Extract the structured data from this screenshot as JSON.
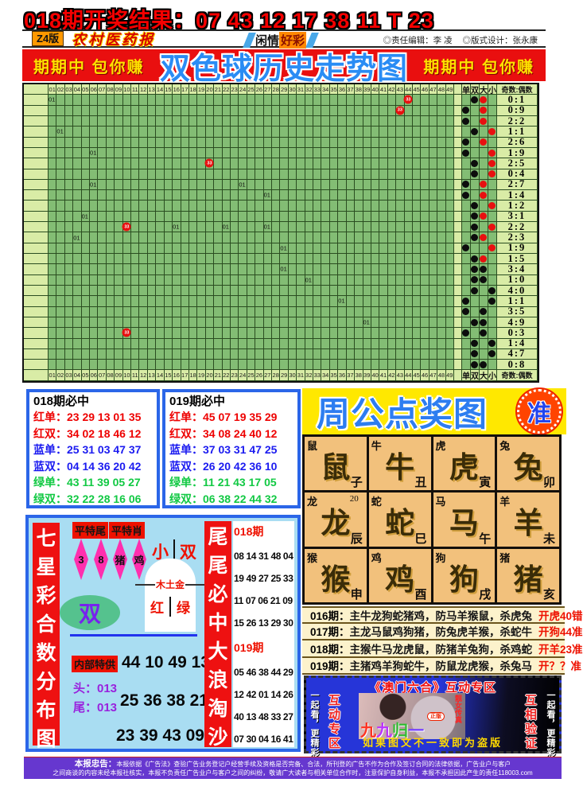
{
  "page": {
    "result_title": "018期开奖结果：07 43 12 17 38 11 T 23"
  },
  "masthead": {
    "edition": "Z4版",
    "paper_name": "农村医药报",
    "column_left": "闲情",
    "column_right": "好彩",
    "editor": "◎责任编辑：李 凌",
    "designer": "◎版式设计：张永康"
  },
  "banner": {
    "slogan_left": "期期中 包你赚",
    "title": "双色球历史走势图",
    "slogan_right": "期期中 包你赚"
  },
  "trend_chart": {
    "type": "table",
    "title": "双色球历史走势图",
    "column_headers": [
      "01",
      "02",
      "03",
      "04",
      "05",
      "06",
      "07",
      "08",
      "09",
      "10",
      "11",
      "12",
      "13",
      "14",
      "15",
      "16",
      "17",
      "18",
      "19",
      "20",
      "21",
      "22",
      "23",
      "24",
      "25",
      "26",
      "27",
      "28",
      "29",
      "30",
      "31",
      "32",
      "33",
      "34",
      "35",
      "36",
      "37",
      "38",
      "39",
      "40",
      "41",
      "42",
      "43",
      "44",
      "45",
      "46",
      "47",
      "48",
      "49"
    ],
    "right_headers": [
      "单",
      "双",
      "大",
      "小"
    ],
    "ratio_header": "奇数:偶数",
    "rows": [
      {
        "parity": "双",
        "size": "大",
        "size_color": "red",
        "ratio": "0:1",
        "marks": [
          {
            "col": 1,
            "label": "01",
            "dot": false
          },
          {
            "col": 44,
            "label": "33",
            "dot": true
          }
        ]
      },
      {
        "parity": "单",
        "size": "大",
        "size_color": "red",
        "ratio": "0:9",
        "marks": [
          {
            "col": 43,
            "label": "33",
            "dot": true
          }
        ]
      },
      {
        "parity": "单",
        "size": "大",
        "size_color": "red",
        "ratio": "2:2",
        "marks": []
      },
      {
        "parity": "双",
        "size": "小",
        "size_color": "red",
        "ratio": "1:1",
        "marks": [
          {
            "col": 2,
            "label": "01",
            "dot": false
          }
        ]
      },
      {
        "parity": "单",
        "size": "大",
        "size_color": "red",
        "ratio": "2:6",
        "marks": []
      },
      {
        "parity": "单",
        "size": "小",
        "size_color": "red",
        "ratio": "1:9",
        "marks": [
          {
            "col": 6,
            "label": "01",
            "dot": false
          }
        ]
      },
      {
        "parity": "双",
        "size": "小",
        "size_color": "red",
        "ratio": "2:5",
        "marks": [
          {
            "col": 20,
            "label": "33",
            "dot": true
          }
        ]
      },
      {
        "parity": "双",
        "size": "小",
        "size_color": "red",
        "ratio": "0:4",
        "marks": []
      },
      {
        "parity": "单",
        "size": "大",
        "size_color": "red",
        "ratio": "2:7",
        "marks": [
          {
            "col": 6,
            "label": "01",
            "dot": false
          },
          {
            "col": 24,
            "label": "01",
            "dot": false
          }
        ]
      },
      {
        "parity": "单",
        "size": "大",
        "size_color": "red",
        "ratio": "1:4",
        "marks": [
          {
            "col": 27,
            "label": "01",
            "dot": false
          }
        ]
      },
      {
        "parity": "双",
        "size": "小",
        "size_color": "red",
        "ratio": "1:2",
        "marks": []
      },
      {
        "parity": "双",
        "size": "大",
        "size_color": "red",
        "ratio": "3:1",
        "marks": [
          {
            "col": 5,
            "label": "01",
            "dot": false
          }
        ]
      },
      {
        "parity": "双",
        "size": "小",
        "size_color": "red",
        "ratio": "2:2",
        "marks": [
          {
            "col": 10,
            "label": "33",
            "dot": true
          },
          {
            "col": 16,
            "label": "01",
            "dot": false
          },
          {
            "col": 22,
            "label": "01",
            "dot": false
          },
          {
            "col": 27,
            "label": "01",
            "dot": false
          }
        ]
      },
      {
        "parity": "双",
        "size": "大",
        "size_color": "red",
        "ratio": "2:3",
        "marks": [
          {
            "col": 4,
            "label": "01",
            "dot": false
          }
        ]
      },
      {
        "parity": "单",
        "size": "小",
        "size_color": "red",
        "ratio": "1:9",
        "marks": [
          {
            "col": 29,
            "label": "01",
            "dot": false
          }
        ]
      },
      {
        "parity": "双",
        "size": "大",
        "size_color": "red",
        "ratio": "1:5",
        "marks": []
      },
      {
        "parity": "双",
        "size": "大",
        "size_color": "black",
        "ratio": "3:4",
        "marks": [
          {
            "col": 29,
            "label": "01",
            "dot": false
          }
        ]
      },
      {
        "parity": "双",
        "size": "大",
        "size_color": "black",
        "ratio": "1:0",
        "marks": [
          {
            "col": 32,
            "label": "01",
            "dot": false
          }
        ]
      },
      {
        "parity": "双",
        "size": "小",
        "size_color": "black",
        "ratio": "4:0",
        "marks": []
      },
      {
        "parity": "单",
        "size": "小",
        "size_color": "black",
        "ratio": "1:1",
        "marks": [
          {
            "col": 36,
            "label": "01",
            "dot": false
          }
        ]
      },
      {
        "parity": "单",
        "size": "大",
        "size_color": "black",
        "ratio": "3:5",
        "marks": []
      },
      {
        "parity": "双",
        "size": "大",
        "size_color": "black",
        "ratio": "4:9",
        "marks": [
          {
            "col": 39,
            "label": "01",
            "dot": false
          }
        ]
      },
      {
        "parity": "单",
        "size": "大",
        "size_color": "black",
        "ratio": "0:3",
        "marks": [
          {
            "col": 10,
            "label": "33",
            "dot": true
          }
        ]
      },
      {
        "parity": "双",
        "size": "小",
        "size_color": "black",
        "ratio": "1:4",
        "marks": []
      },
      {
        "parity": "双",
        "size": "小",
        "size_color": "black",
        "ratio": "4:7",
        "marks": []
      },
      {
        "parity": "双",
        "size": "大",
        "size_color": "black",
        "ratio": "0:8",
        "marks": []
      }
    ]
  },
  "picks": [
    {
      "title": "018期必中",
      "rows": [
        {
          "label": "红单：",
          "numbers": "23 29 13 01 35",
          "color": "red"
        },
        {
          "label": "红双：",
          "numbers": "34 02 18 46 12",
          "color": "red"
        },
        {
          "label": "蓝单：",
          "numbers": "25 31 03 47 37",
          "color": "blue"
        },
        {
          "label": "蓝双：",
          "numbers": "04 14 36 20 42",
          "color": "blue"
        },
        {
          "label": "绿单：",
          "numbers": "43 11 39 05 27",
          "color": "green"
        },
        {
          "label": "绿双：",
          "numbers": "32 22 28 16 06",
          "color": "green"
        }
      ]
    },
    {
      "title": "019期必中",
      "rows": [
        {
          "label": "红单：",
          "numbers": "45 07 19 35 29",
          "color": "red"
        },
        {
          "label": "红双：",
          "numbers": "34 08 24 40 12",
          "color": "red"
        },
        {
          "label": "蓝单：",
          "numbers": "37 03 31 47 25",
          "color": "blue"
        },
        {
          "label": "蓝双：",
          "numbers": "26 20 42 36 10",
          "color": "blue"
        },
        {
          "label": "绿单：",
          "numbers": "11 21 43 17 05",
          "color": "green"
        },
        {
          "label": "绿双：",
          "numbers": "06 38 22 44 32",
          "color": "green"
        }
      ]
    }
  ],
  "zhougong": {
    "title": "周公点奖图",
    "badge": "准",
    "cells": [
      {
        "animal": "鼠",
        "branch": "子",
        "note": ""
      },
      {
        "animal": "牛",
        "branch": "丑",
        "note": ""
      },
      {
        "animal": "虎",
        "branch": "寅",
        "note": ""
      },
      {
        "animal": "兔",
        "branch": "卯",
        "note": ""
      },
      {
        "animal": "龙",
        "branch": "辰",
        "note": "20"
      },
      {
        "animal": "蛇",
        "branch": "巳",
        "note": ""
      },
      {
        "animal": "马",
        "branch": "午",
        "note": ""
      },
      {
        "animal": "羊",
        "branch": "未",
        "note": ""
      },
      {
        "animal": "猴",
        "branch": "申",
        "note": ""
      },
      {
        "animal": "鸡",
        "branch": "酉",
        "note": ""
      },
      {
        "animal": "狗",
        "branch": "戌",
        "note": ""
      },
      {
        "animal": "猪",
        "branch": "亥",
        "note": ""
      }
    ],
    "predictions": [
      {
        "period": "016期：",
        "text": "主牛龙狗蛇猪鸡，防马羊猴鼠，杀虎兔",
        "result": "开虎40错"
      },
      {
        "period": "017期：",
        "text": "主龙马鼠鸡狗猪，防兔虎羊猴，杀蛇牛",
        "result": "开狗44准"
      },
      {
        "period": "018期：",
        "text": "主猴牛马龙虎鼠，防猪羊兔狗，杀鸡蛇",
        "result": "开羊23准"
      },
      {
        "period": "019期：",
        "text": "主猪鸡羊狗蛇牛，防鼠龙虎猴，杀兔马",
        "result": "开？？准"
      }
    ]
  },
  "qixingcai": {
    "left_banner": "七星彩合数分布图",
    "box1": "平特尾",
    "box2": "平特肖",
    "diamonds": [
      "3",
      "8",
      "猪",
      "鸡"
    ],
    "xiao": "小",
    "shuang_top": "双",
    "elements": "木土金",
    "hong": "红",
    "lv": "绿",
    "oval": "双",
    "neibu_label": "内部特供",
    "neibu_numbers": "44 10 49 13",
    "head": "头：013",
    "tail": "尾：013",
    "mid_numbers": "25 36 38 21",
    "bottom_numbers": "23 39 43 09"
  },
  "weiwei": {
    "banner": "尾尾必中大浪淘沙",
    "groups": [
      {
        "period": "018期",
        "rows": [
          "08 14 31 48 04",
          "19 49 27 25 33",
          "11 07 06 21 09",
          "15 26 13 29 30"
        ]
      },
      {
        "period": "019期",
        "rows": [
          "05 46 38 44 29",
          "12 42 01 14 26",
          "40 13 48 33 27",
          "07 30 04 16 41"
        ]
      }
    ]
  },
  "macau": {
    "title": "《澳门六合》互动专区",
    "left_outer": "一起看，更精彩！",
    "left_inner": "互动专区",
    "right_inner": "互相验证",
    "right_outer": "一起看，更精彩！",
    "photo_caption": "靓女传真",
    "photo_brand": "九九归一",
    "photo_badge": "正版",
    "bottom_note": "如果图文不一致即为盗版"
  },
  "disclaimer": {
    "lead": "本报忠告：",
    "line1": "本报依据《广告法》查验广告业务登记户经营手续及资格是否完备、合法，所刊登的广告不作为合作及签订合同的法律依据，广告业户与客户",
    "line2": "之间商谈的内容未经本报社核实，本报不负责任广告业户与客户之间的纠纷，敬请广大读者与相关单位合作时，注意保护自身利益，本报不承担因此产生的责任118003.com"
  }
}
